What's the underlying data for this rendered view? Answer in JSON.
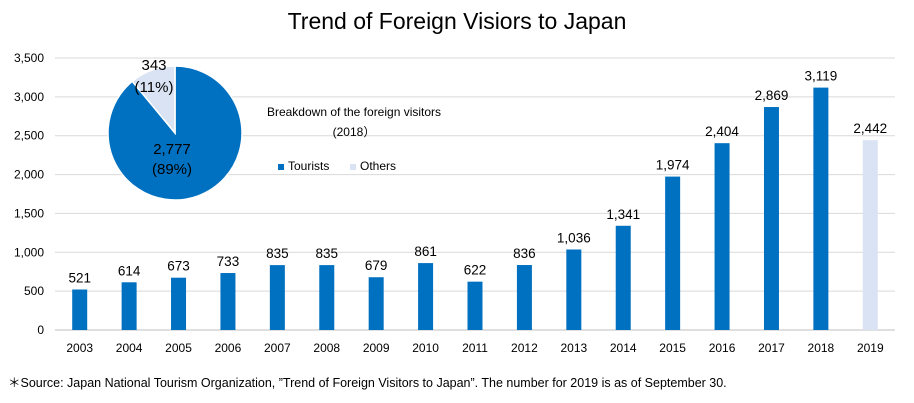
{
  "chart_data": [
    {
      "type": "bar",
      "title": "Trend of Foreign Visiors to Japan",
      "categories": [
        "2003",
        "2004",
        "2005",
        "2006",
        "2007",
        "2008",
        "2009",
        "2010",
        "2011",
        "2012",
        "2013",
        "2014",
        "2015",
        "2016",
        "2017",
        "2018",
        "2019"
      ],
      "values": [
        521,
        614,
        673,
        733,
        835,
        835,
        679,
        861,
        622,
        836,
        1036,
        1341,
        1974,
        2404,
        2869,
        3119,
        2442
      ],
      "value_labels": [
        "521",
        "614",
        "673",
        "733",
        "835",
        "835",
        "679",
        "861",
        "622",
        "836",
        "1,036",
        "1,341",
        "1,974",
        "2,404",
        "2,869",
        "3,119",
        "2,442"
      ],
      "ylim": [
        0,
        3500
      ],
      "yticks": [
        0,
        500,
        1000,
        1500,
        2000,
        2500,
        3000,
        3500
      ],
      "ytick_labels": [
        "0",
        "500",
        "1,000",
        "1,500",
        "2,000",
        "2,500",
        "3,000",
        "3,500"
      ],
      "grid": true,
      "colors": {
        "default": "#0070C0",
        "highlight": "#DAE3F3"
      },
      "highlight_index": 16
    },
    {
      "type": "pie",
      "title": "Breakdown of the foreign visitors",
      "subtitle": "(2018）",
      "slices": [
        {
          "name": "Tourists",
          "value": 2777,
          "label": "2,777",
          "pct": "(89%)",
          "color": "#0070C0"
        },
        {
          "name": "Others",
          "value": 343,
          "label": "343",
          "pct": "(11%)",
          "color": "#DAE3F3"
        }
      ],
      "legend_position": "below-title"
    }
  ],
  "source_note": "＊Source: Japan National Tourism Organization, ”Trend of Foreign Visitors to Japan”. The number for 2019 is as of September 30."
}
